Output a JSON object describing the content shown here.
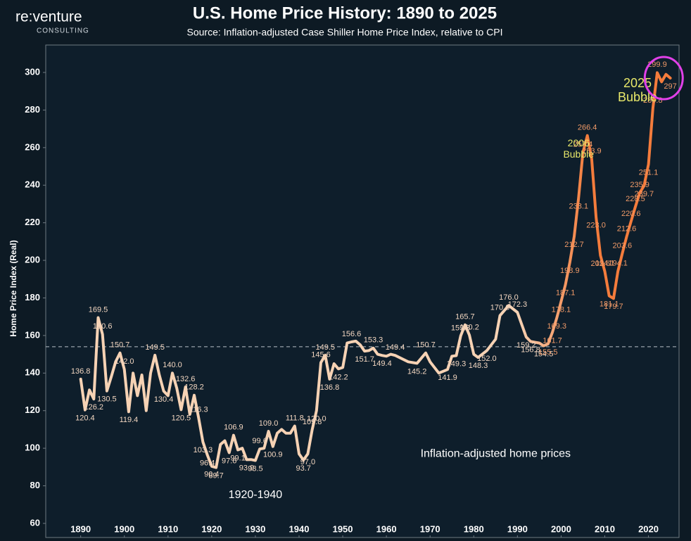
{
  "brand": {
    "name": "re:venture",
    "tagline": "CONSULTING"
  },
  "chart_data": {
    "type": "line",
    "title": "U.S. Home Price History: 1890 to 2025",
    "subtitle": "Source: Inflation-adjusted Case Shiller Home Price Index, relative to CPI",
    "y_label": "Home Price Index (Real)",
    "xlim": [
      1882,
      2027
    ],
    "ylim": [
      52.5,
      314.6
    ],
    "xticks": [
      1890,
      1900,
      1910,
      1920,
      1930,
      1940,
      1950,
      1960,
      1970,
      1980,
      1990,
      2000,
      2010,
      2020
    ],
    "yticks": [
      60,
      80,
      100,
      120,
      140,
      160,
      180,
      200,
      220,
      240,
      260,
      280,
      300
    ],
    "reference_line": 154,
    "series": [
      {
        "color": "#f6d2b4",
        "color_recent": "#f47c3c",
        "x": [
          1890,
          1891,
          1892,
          1893,
          1894,
          1895,
          1896,
          1897,
          1898,
          1899,
          1900,
          1901,
          1902,
          1903,
          1904,
          1905,
          1906,
          1907,
          1908,
          1909,
          1910,
          1911,
          1912,
          1913,
          1914,
          1915,
          1916,
          1917,
          1918,
          1919,
          1920,
          1921,
          1922,
          1923,
          1924,
          1925,
          1926,
          1927,
          1928,
          1929,
          1930,
          1931,
          1932,
          1933,
          1934,
          1935,
          1936,
          1937,
          1938,
          1939,
          1940,
          1941,
          1942,
          1943,
          1944,
          1945,
          1946,
          1947,
          1948,
          1949,
          1950,
          1951,
          1952,
          1953,
          1954,
          1955,
          1956,
          1957,
          1958,
          1959,
          1960,
          1961,
          1962,
          1965,
          1967,
          1969,
          1970,
          1972,
          1974,
          1975,
          1976,
          1977,
          1978,
          1979,
          1980,
          1981,
          1983,
          1985,
          1986,
          1988,
          1990,
          1992,
          1993,
          1995,
          1996,
          1997,
          1998,
          1999,
          2000,
          2001,
          2002,
          2003,
          2004,
          2005,
          2006,
          2007,
          2008,
          2009,
          2010,
          2011,
          2012,
          2013,
          2014,
          2015,
          2016,
          2017,
          2018,
          2019,
          2020,
          2021,
          2022,
          2023,
          2024,
          2025
        ],
        "values": [
          136.8,
          120.4,
          131,
          126.2,
          169.5,
          160.6,
          130.5,
          138,
          146,
          150.7,
          142.0,
          119.4,
          140,
          128,
          139,
          120,
          140,
          149.5,
          139,
          130.4,
          128,
          140.0,
          132,
          120.5,
          132.6,
          118,
          128.2,
          116.3,
          103.3,
          96.4,
          90.4,
          89.7,
          102,
          104,
          97.6,
          106.9,
          99.1,
          100,
          93.9,
          94,
          93.5,
          99.6,
          100,
          109.0,
          100.9,
          108,
          110,
          108,
          108,
          111.8,
          97,
          93.7,
          97.0,
          109.8,
          120.0,
          145.6,
          149.5,
          136.8,
          145,
          142.2,
          143,
          156,
          156.6,
          157,
          155,
          151.7,
          152,
          153.3,
          150,
          149.4,
          149,
          150,
          149.4,
          146,
          145.2,
          150.7,
          146,
          140,
          141.9,
          149,
          149.3,
          159.8,
          165.7,
          160.2,
          150,
          148.3,
          152.0,
          158,
          170.6,
          176.0,
          172.3,
          159.2,
          156.8,
          156,
          154.5,
          155.5,
          161.7,
          169.3,
          178.1,
          187.1,
          198.9,
          212.7,
          233.1,
          257.4,
          266.4,
          253.9,
          223.0,
          202.6,
          194.1,
          181.1,
          179.7,
          194.1,
          203.6,
          212.6,
          220.6,
          228.5,
          235.9,
          239.7,
          251.1,
          280.8,
          299.9,
          295,
          299,
          297
        ],
        "value_labels": [
          "136.8",
          "120.4",
          null,
          "126.2",
          "169.5",
          "160.6",
          "130.5",
          null,
          null,
          "150.7",
          "142.0",
          "119.4",
          null,
          null,
          null,
          null,
          null,
          "149.5",
          null,
          "130.4",
          null,
          "140.0",
          null,
          "120.5",
          "132.6",
          null,
          "128.2",
          "116.3",
          "103.3",
          "96.4",
          "90.4",
          "89.7",
          null,
          null,
          "97.6",
          "106.9",
          "99.1",
          null,
          "93.9",
          null,
          "93.5",
          "99.6",
          null,
          "109.0",
          "100.9",
          null,
          null,
          null,
          null,
          "111.8",
          null,
          "93.7",
          "97.0",
          "109.8",
          "120.0",
          "145.6",
          "149.5",
          "136.8",
          null,
          "142.2",
          null,
          null,
          "156.6",
          null,
          null,
          "151.7",
          null,
          "153.3",
          null,
          "149.4",
          null,
          null,
          "149.4",
          null,
          "145.2",
          "150.7",
          null,
          null,
          "141.9",
          null,
          "149.3",
          "159.8",
          "165.7",
          "160.2",
          null,
          "148.3",
          "152.0",
          null,
          "170.6",
          "176.0",
          "172.3",
          "159.2",
          "156.8",
          null,
          "154.5",
          "155.5",
          "161.7",
          "169.3",
          "178.1",
          "187.1",
          "198.9",
          "212.7",
          "233.1",
          "257.4",
          "266.4",
          "253.9",
          "223.0",
          "202.6",
          "194.1",
          "181.1",
          "179.7",
          "194.1",
          "203.6",
          "212.6",
          "220.6",
          "228.5",
          "235.9",
          "239.7",
          "251.1",
          "280.8",
          "299.9",
          null,
          null,
          "297"
        ]
      }
    ],
    "annotations": [
      {
        "text": "2006",
        "text2": "Bubble",
        "x": 2004,
        "y": 262
      },
      {
        "text": "2025",
        "text2": "Bubble",
        "x": 2017.5,
        "y": 294
      },
      {
        "text": "1920-1940",
        "x": 1930,
        "y": 75
      },
      {
        "text": "Inflation-adjusted home prices",
        "x": 1985,
        "y": 97
      }
    ],
    "highlight": {
      "x": 2023.5,
      "y": 297,
      "color": "#e040e8"
    }
  }
}
